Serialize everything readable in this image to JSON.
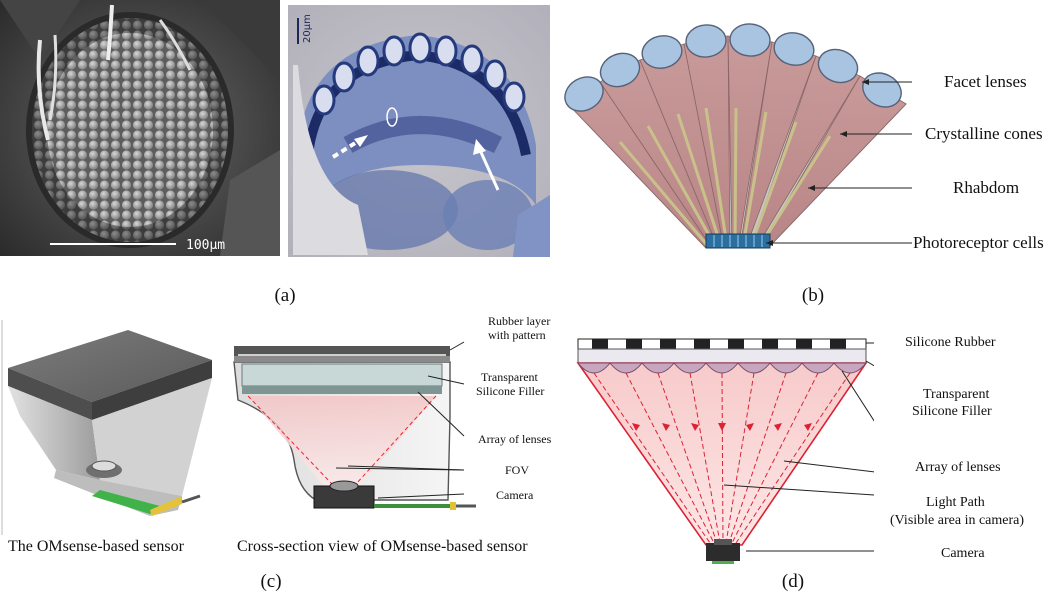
{
  "panel_a": {
    "caption": "(a)",
    "sem_scale_bar": "100µm",
    "histology_scale_bar": "20µm"
  },
  "panel_b": {
    "caption": "(b)",
    "labels": [
      "Facet lenses",
      "Crystalline cones",
      "Rhabdom",
      "Photoreceptor cells"
    ]
  },
  "panel_c": {
    "caption": "(c)",
    "left_title": "The OMsense-based sensor",
    "right_title": "Cross-section view of OMsense-based sensor",
    "labels": {
      "rubber_line1": "Rubber layer",
      "rubber_line2": "with pattern",
      "filler_line1": "Transparent",
      "filler_line2": "Silicone Filler",
      "lenses": "Array of lenses",
      "fov": "FOV",
      "camera": "Camera"
    }
  },
  "panel_d": {
    "caption": "(d)",
    "labels": {
      "rubber": "Silicone Rubber",
      "filler_line1": "Transparent",
      "filler_line2": "Silicone Filler",
      "lenses": "Array of lenses",
      "light_line1": "Light Path",
      "light_line2": "(Visible area in camera)",
      "camera": "Camera"
    }
  }
}
